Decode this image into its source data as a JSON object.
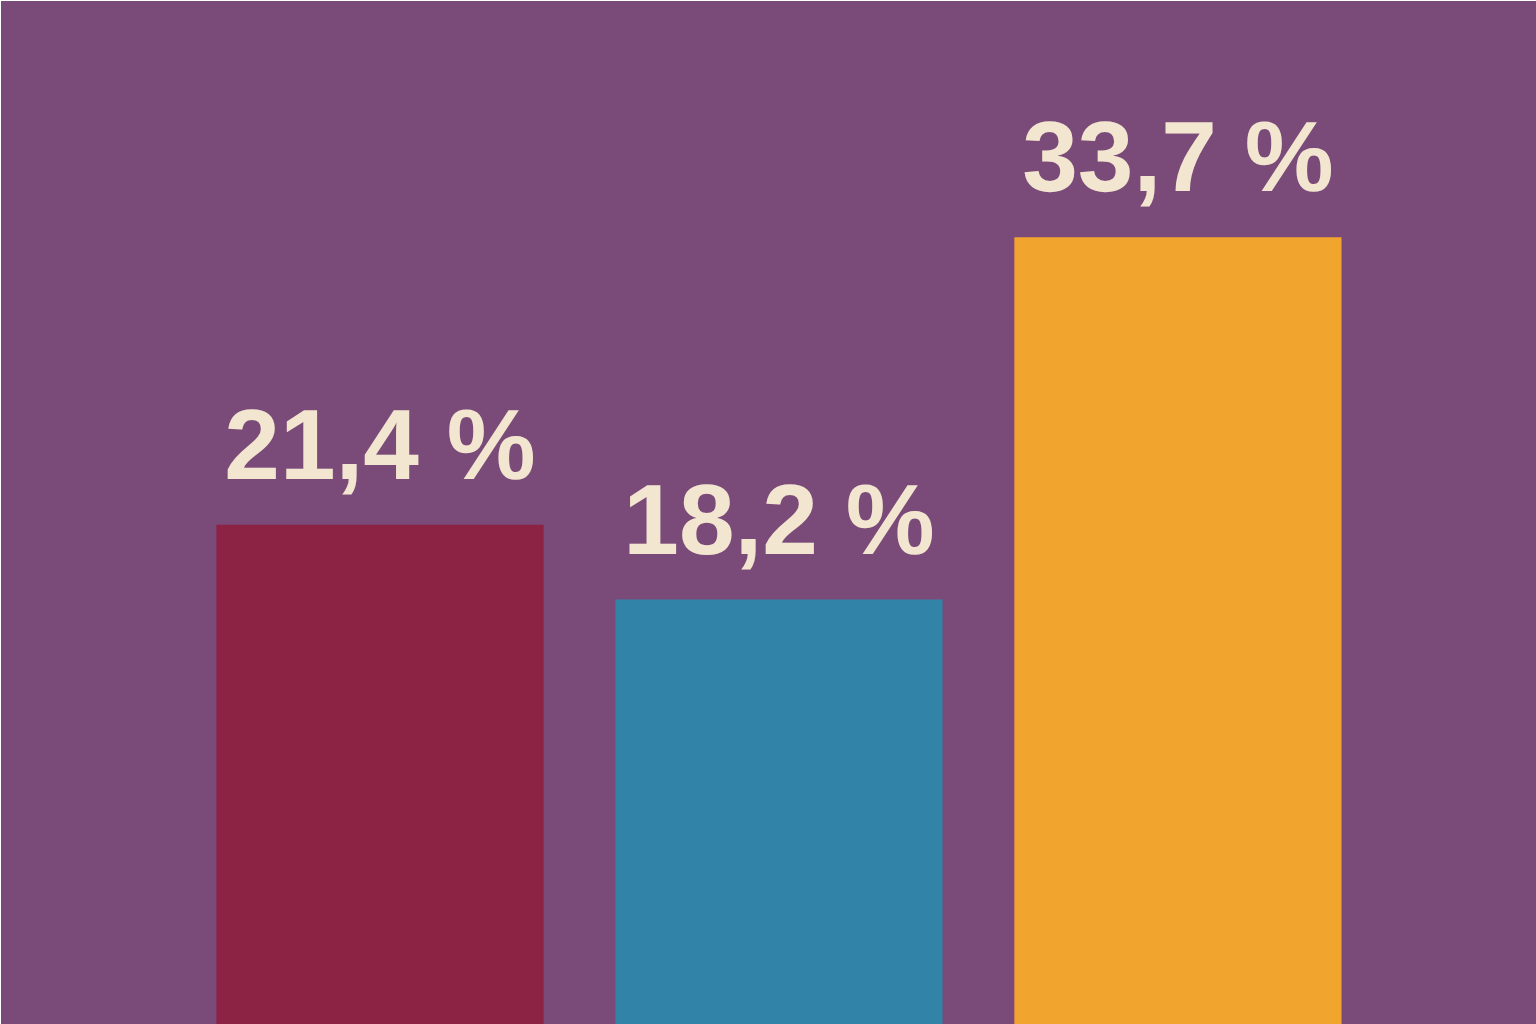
{
  "chart_data": {
    "type": "bar",
    "categories": [
      null,
      null,
      null
    ],
    "values": [
      21.4,
      18.2,
      33.7
    ],
    "colors": [
      "#8c2244",
      "#3283a8",
      "#f2a52e"
    ],
    "value_labels": [
      "21,4 %",
      "18,2 %",
      "33,7 %"
    ],
    "grid": false
  }
}
